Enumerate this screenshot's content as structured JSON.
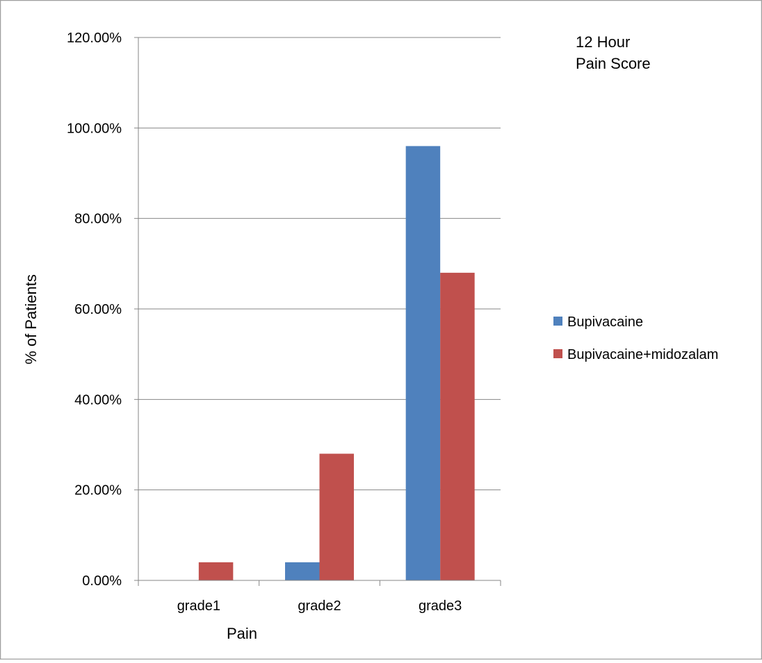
{
  "chart_data": {
    "type": "bar",
    "title_lines": [
      "12 Hour",
      "Pain Score"
    ],
    "xlabel": "Pain",
    "ylabel": "% of Patients",
    "categories": [
      "grade1",
      "grade2",
      "grade3"
    ],
    "series": [
      {
        "name": "Bupivacaine",
        "values": [
          0,
          4,
          96
        ],
        "color": "#4F81BD"
      },
      {
        "name": "Bupivacaine+midozalam",
        "values": [
          4,
          28,
          68
        ],
        "color": "#C0504D"
      }
    ],
    "ylim": [
      0,
      120
    ],
    "yticks": [
      0,
      20,
      40,
      60,
      80,
      100,
      120
    ],
    "ytick_labels": [
      "0.00%",
      "20.00%",
      "40.00%",
      "60.00%",
      "80.00%",
      "100.00%",
      "120.00%"
    ],
    "grid": true,
    "legend_position": "right"
  }
}
